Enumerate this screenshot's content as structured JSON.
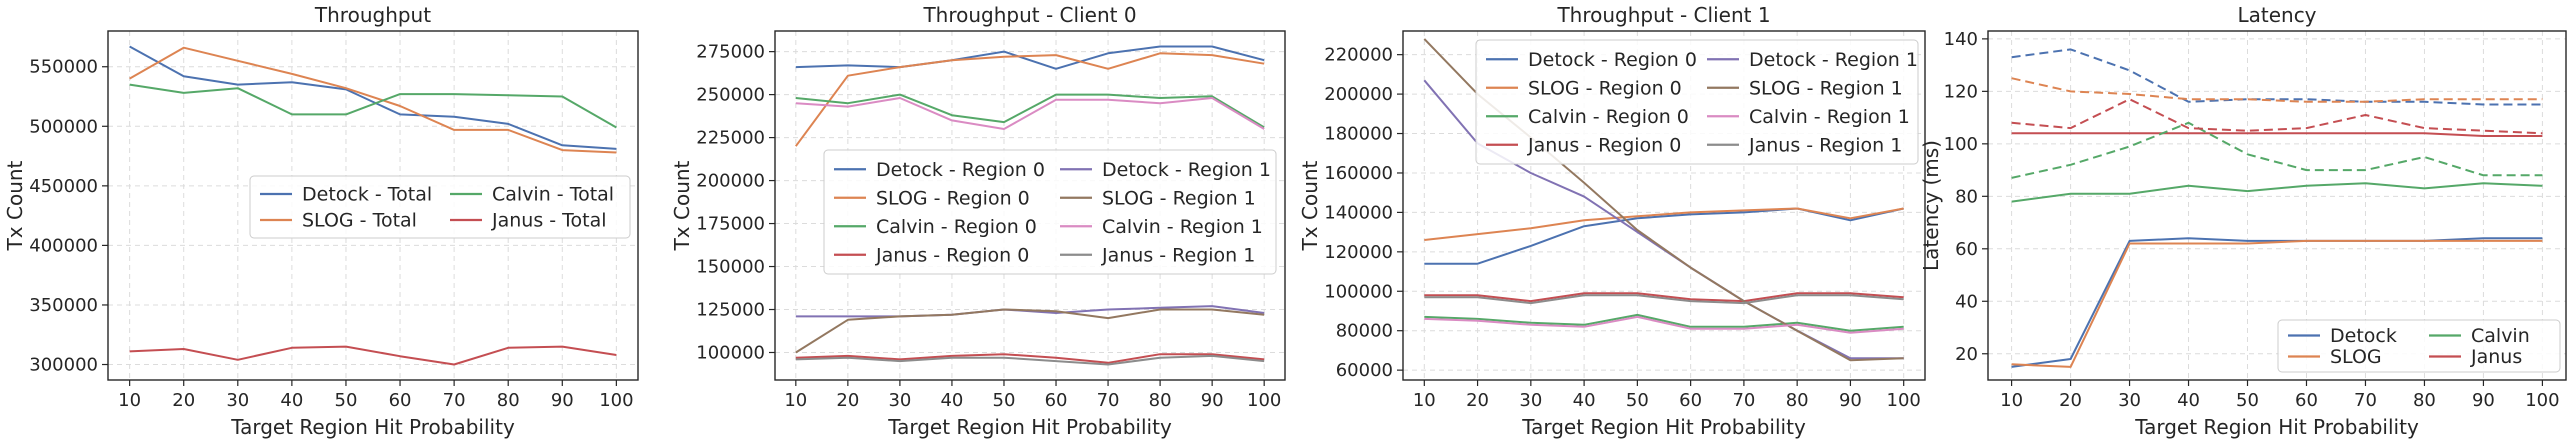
{
  "colors": {
    "blue": "#4c72b0",
    "orange": "#dd8452",
    "green": "#55a868",
    "red": "#c44e52",
    "purple": "#8172b3",
    "brown": "#937860",
    "pink": "#da8bc3",
    "gray": "#8c8c8c"
  },
  "chart_data": [
    {
      "type": "line",
      "title": "Throughput",
      "xlabel": "Target Region Hit Probability",
      "ylabel": "Tx Count",
      "x": [
        10,
        20,
        30,
        40,
        50,
        60,
        70,
        80,
        90,
        100
      ],
      "xlim": [
        6,
        104
      ],
      "ylim": [
        287000,
        580000
      ],
      "yticks": [
        300000,
        350000,
        400000,
        450000,
        500000,
        550000
      ],
      "ytick_labels": [
        "300000",
        "350000",
        "400000",
        "450000",
        "500000",
        "550000"
      ],
      "grid": true,
      "legend": {
        "placement": "center-right",
        "columns": 2
      },
      "series": [
        {
          "name": "Detock - Total",
          "color": "blue",
          "style": "solid",
          "values": [
            567000,
            542000,
            535000,
            537000,
            531000,
            510000,
            508000,
            502000,
            484000,
            481000
          ]
        },
        {
          "name": "SLOG - Total",
          "color": "orange",
          "style": "solid",
          "values": [
            540000,
            566000,
            555000,
            544000,
            532000,
            517000,
            497000,
            497000,
            480000,
            478000
          ]
        },
        {
          "name": "Calvin - Total",
          "color": "green",
          "style": "solid",
          "values": [
            535000,
            528000,
            532000,
            510000,
            510000,
            527000,
            527000,
            526000,
            525000,
            499000
          ]
        },
        {
          "name": "Janus - Total",
          "color": "red",
          "style": "solid",
          "values": [
            311000,
            313000,
            304000,
            314000,
            315000,
            307000,
            300000,
            314000,
            315000,
            308000
          ]
        }
      ]
    },
    {
      "type": "line",
      "title": "Throughput - Client 0",
      "xlabel": "Target Region Hit Probability",
      "ylabel": "Tx Count",
      "x": [
        10,
        20,
        30,
        40,
        50,
        60,
        70,
        80,
        90,
        100
      ],
      "xlim": [
        6,
        104
      ],
      "ylim": [
        84000,
        287000
      ],
      "yticks": [
        100000,
        125000,
        150000,
        175000,
        200000,
        225000,
        250000,
        275000
      ],
      "ytick_labels": [
        "100000",
        "125000",
        "150000",
        "175000",
        "200000",
        "225000",
        "250000",
        "275000"
      ],
      "grid": true,
      "legend": {
        "placement": "center-right",
        "columns": 2
      },
      "series": [
        {
          "name": "Detock - Region 0",
          "color": "blue",
          "style": "solid",
          "values": [
            266000,
            267000,
            266000,
            270000,
            275000,
            265000,
            274000,
            278000,
            278000,
            270000
          ]
        },
        {
          "name": "SLOG - Region 0",
          "color": "orange",
          "style": "solid",
          "values": [
            220000,
            261000,
            266000,
            270000,
            272000,
            273000,
            265000,
            274000,
            273000,
            268000
          ]
        },
        {
          "name": "Calvin - Region 0",
          "color": "green",
          "style": "solid",
          "values": [
            248000,
            245000,
            250000,
            238000,
            234000,
            250000,
            250000,
            248000,
            249000,
            231000
          ]
        },
        {
          "name": "Janus - Region 0",
          "color": "red",
          "style": "solid",
          "values": [
            97000,
            98000,
            96000,
            98000,
            99000,
            97000,
            94000,
            99000,
            99000,
            96000
          ]
        },
        {
          "name": "Detock - Region 1",
          "color": "purple",
          "style": "solid",
          "values": [
            121000,
            121000,
            121000,
            122000,
            125000,
            123000,
            125000,
            126000,
            127000,
            123000
          ]
        },
        {
          "name": "SLOG - Region 1",
          "color": "brown",
          "style": "solid",
          "values": [
            100000,
            119000,
            121000,
            122000,
            125000,
            124000,
            120000,
            125000,
            125000,
            122000
          ]
        },
        {
          "name": "Calvin - Region 1",
          "color": "pink",
          "style": "solid",
          "values": [
            245000,
            243000,
            248000,
            235000,
            230000,
            247000,
            247000,
            245000,
            248000,
            230000
          ]
        },
        {
          "name": "Janus - Region 1",
          "color": "gray",
          "style": "solid",
          "values": [
            96000,
            97000,
            95000,
            97000,
            97000,
            95000,
            93000,
            97000,
            98000,
            95000
          ]
        }
      ]
    },
    {
      "type": "line",
      "title": "Throughput - Client 1",
      "xlabel": "Target Region Hit Probability",
      "ylabel": "Tx Count",
      "x": [
        10,
        20,
        30,
        40,
        50,
        60,
        70,
        80,
        90,
        100
      ],
      "xlim": [
        6,
        104
      ],
      "ylim": [
        55000,
        232000
      ],
      "yticks": [
        60000,
        80000,
        100000,
        120000,
        140000,
        160000,
        180000,
        200000,
        220000
      ],
      "ytick_labels": [
        "60000",
        "80000",
        "100000",
        "120000",
        "140000",
        "160000",
        "180000",
        "200000",
        "220000"
      ],
      "grid": true,
      "legend": {
        "placement": "top-right",
        "columns": 2
      },
      "series": [
        {
          "name": "Detock - Region 0",
          "color": "blue",
          "style": "solid",
          "values": [
            114000,
            114000,
            123000,
            133000,
            137000,
            139000,
            140000,
            142000,
            136000,
            142000
          ]
        },
        {
          "name": "SLOG - Region 0",
          "color": "orange",
          "style": "solid",
          "values": [
            126000,
            129000,
            132000,
            136000,
            138000,
            140000,
            141000,
            142000,
            137000,
            142000
          ]
        },
        {
          "name": "Calvin - Region 0",
          "color": "green",
          "style": "solid",
          "values": [
            87000,
            86000,
            84000,
            83000,
            88000,
            82000,
            82000,
            84000,
            80000,
            82000
          ]
        },
        {
          "name": "Janus - Region 0",
          "color": "red",
          "style": "solid",
          "values": [
            98000,
            98000,
            95000,
            99000,
            99000,
            96000,
            95000,
            99000,
            99000,
            97000
          ]
        },
        {
          "name": "Detock - Region 1",
          "color": "purple",
          "style": "solid",
          "values": [
            207000,
            175000,
            160000,
            148000,
            130000,
            112000,
            95000,
            80000,
            66000,
            66000
          ]
        },
        {
          "name": "SLOG - Region 1",
          "color": "brown",
          "style": "solid",
          "values": [
            228000,
            200000,
            178000,
            155000,
            131000,
            112000,
            95000,
            80000,
            65000,
            66000
          ]
        },
        {
          "name": "Calvin - Region 1",
          "color": "pink",
          "style": "solid",
          "values": [
            86000,
            85000,
            83000,
            82000,
            87000,
            81000,
            81000,
            83000,
            79000,
            81000
          ]
        },
        {
          "name": "Janus - Region 1",
          "color": "gray",
          "style": "solid",
          "values": [
            97000,
            97000,
            94000,
            98000,
            98000,
            95000,
            94000,
            98000,
            98000,
            96000
          ]
        }
      ]
    },
    {
      "type": "line",
      "title": "Latency",
      "xlabel": "Target Region Hit Probability",
      "ylabel": "Latency (ms)",
      "x": [
        10,
        20,
        30,
        40,
        50,
        60,
        70,
        80,
        90,
        100
      ],
      "xlim": [
        6,
        104
      ],
      "ylim": [
        10,
        143
      ],
      "yticks": [
        20,
        40,
        60,
        80,
        100,
        120,
        140
      ],
      "ytick_labels": [
        "20",
        "40",
        "60",
        "80",
        "100",
        "120",
        "140"
      ],
      "grid": true,
      "legend": {
        "placement": "bottom-right",
        "columns": 2
      },
      "series": [
        {
          "name": "Detock",
          "color": "blue",
          "style": "solid",
          "values": [
            15,
            18,
            63,
            64,
            63,
            63,
            63,
            63,
            64,
            64
          ]
        },
        {
          "name": "SLOG",
          "color": "orange",
          "style": "solid",
          "values": [
            16,
            15,
            62,
            62,
            62,
            63,
            63,
            63,
            63,
            63
          ]
        },
        {
          "name": "Calvin",
          "color": "green",
          "style": "solid",
          "values": [
            78,
            81,
            81,
            84,
            82,
            84,
            85,
            83,
            85,
            84
          ]
        },
        {
          "name": "Janus",
          "color": "red",
          "style": "solid",
          "values": [
            104,
            104,
            104,
            104,
            104,
            104,
            104,
            104,
            103,
            103
          ]
        },
        {
          "color": "blue",
          "style": "dashed",
          "values": [
            133,
            136,
            128,
            116,
            117,
            117,
            116,
            116,
            115,
            115
          ]
        },
        {
          "color": "orange",
          "style": "dashed",
          "values": [
            125,
            120,
            119,
            117,
            117,
            116,
            116,
            117,
            117,
            117
          ]
        },
        {
          "color": "green",
          "style": "dashed",
          "values": [
            87,
            92,
            99,
            108,
            96,
            90,
            90,
            95,
            88,
            88
          ]
        },
        {
          "color": "red",
          "style": "dashed",
          "values": [
            108,
            106,
            117,
            106,
            105,
            106,
            111,
            106,
            105,
            104
          ]
        }
      ]
    }
  ]
}
